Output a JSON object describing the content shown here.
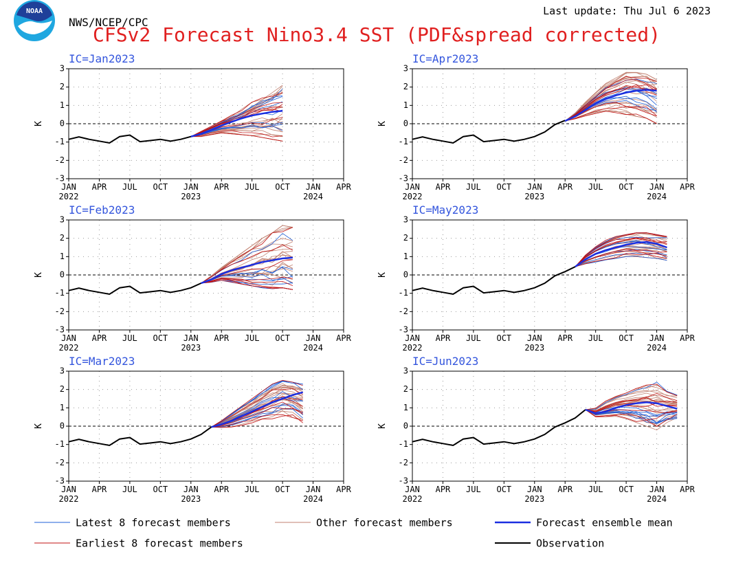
{
  "header": {
    "agency": "NWS/NCEP/CPC",
    "title": "CFSv2 Forecast Nino3.4 SST (PDF&spread corrected)",
    "last_update": "Last update: Thu Jul 6 2023",
    "logo_text": "NOAA"
  },
  "colors": {
    "title": "#e02020",
    "ic_label": "#3355dd",
    "latest": "#1e5fd8",
    "other": "#c08070",
    "mean": "#1a2ee0",
    "earliest": "#c01010",
    "observation": "#000000",
    "logo_blue": "#1fa7e0",
    "logo_dark": "#1f3f99"
  },
  "legend": {
    "latest": "Latest 8 forecast members",
    "other": "Other forecast members",
    "mean": "Forecast ensemble mean",
    "earliest": "Earliest 8 forecast members",
    "observation": "Observation"
  },
  "chart_data": {
    "type": "line",
    "ylabel": "K",
    "ylim": [
      -3,
      3
    ],
    "y_ticks": [
      -3,
      -2,
      -1,
      0,
      1,
      2,
      3
    ],
    "x_range": [
      "2022-01",
      "2024-04"
    ],
    "x_ticks": [
      {
        "month": "JAN",
        "year": "2022"
      },
      {
        "month": "APR",
        "year": ""
      },
      {
        "month": "JUL",
        "year": ""
      },
      {
        "month": "OCT",
        "year": ""
      },
      {
        "month": "JAN",
        "year": "2023"
      },
      {
        "month": "APR",
        "year": ""
      },
      {
        "month": "JUL",
        "year": ""
      },
      {
        "month": "OCT",
        "year": ""
      },
      {
        "month": "JAN",
        "year": "2024"
      },
      {
        "month": "APR",
        "year": ""
      }
    ],
    "grid": true,
    "zero_line": "dashed",
    "observation": {
      "x": [
        "2022-01",
        "2022-02",
        "2022-03",
        "2022-04",
        "2022-05",
        "2022-06",
        "2022-07",
        "2022-08",
        "2022-09",
        "2022-10",
        "2022-11",
        "2022-12",
        "2023-01",
        "2023-02",
        "2023-03",
        "2023-04",
        "2023-05",
        "2023-06"
      ],
      "y": [
        -0.85,
        -0.72,
        -0.85,
        -0.95,
        -1.05,
        -0.7,
        -0.62,
        -0.98,
        -0.92,
        -0.85,
        -0.95,
        -0.85,
        -0.7,
        -0.45,
        -0.05,
        0.18,
        0.45,
        0.9
      ]
    },
    "panels": [
      {
        "ic": "IC=Jan2023",
        "mean": {
          "x": [
            "2023-01",
            "2023-02",
            "2023-03",
            "2023-04",
            "2023-05",
            "2023-06",
            "2023-07",
            "2023-08",
            "2023-09",
            "2023-10"
          ],
          "y": [
            -0.7,
            -0.55,
            -0.35,
            -0.1,
            0.1,
            0.3,
            0.45,
            0.55,
            0.65,
            0.7
          ]
        },
        "envelope": {
          "x": [
            "2023-01",
            "2023-02",
            "2023-03",
            "2023-04",
            "2023-05",
            "2023-06",
            "2023-07",
            "2023-08",
            "2023-09",
            "2023-10"
          ],
          "min": [
            -0.75,
            -0.7,
            -0.6,
            -0.5,
            -0.55,
            -0.6,
            -0.65,
            -0.75,
            -0.85,
            -0.95
          ],
          "max": [
            -0.65,
            -0.4,
            -0.1,
            0.2,
            0.5,
            0.8,
            1.2,
            1.5,
            1.8,
            2.1
          ]
        }
      },
      {
        "ic": "IC=Feb2023",
        "mean": {
          "x": [
            "2023-02",
            "2023-03",
            "2023-04",
            "2023-05",
            "2023-06",
            "2023-07",
            "2023-08",
            "2023-09",
            "2023-10",
            "2023-11"
          ],
          "y": [
            -0.45,
            -0.25,
            0.05,
            0.25,
            0.4,
            0.55,
            0.7,
            0.8,
            0.9,
            0.95
          ]
        },
        "envelope": {
          "x": [
            "2023-02",
            "2023-03",
            "2023-04",
            "2023-05",
            "2023-06",
            "2023-07",
            "2023-08",
            "2023-09",
            "2023-10",
            "2023-11"
          ],
          "min": [
            -0.5,
            -0.4,
            -0.3,
            -0.4,
            -0.5,
            -0.6,
            -0.7,
            -0.75,
            -0.7,
            -0.8
          ],
          "max": [
            -0.4,
            -0.05,
            0.4,
            0.8,
            1.2,
            1.6,
            2.0,
            2.3,
            2.7,
            2.6
          ]
        }
      },
      {
        "ic": "IC=Mar2023",
        "mean": {
          "x": [
            "2023-03",
            "2023-04",
            "2023-05",
            "2023-06",
            "2023-07",
            "2023-08",
            "2023-09",
            "2023-10",
            "2023-11",
            "2023-12"
          ],
          "y": [
            -0.05,
            0.1,
            0.3,
            0.55,
            0.8,
            1.05,
            1.3,
            1.5,
            1.7,
            1.85
          ]
        },
        "envelope": {
          "x": [
            "2023-03",
            "2023-04",
            "2023-05",
            "2023-06",
            "2023-07",
            "2023-08",
            "2023-09",
            "2023-10",
            "2023-11",
            "2023-12"
          ],
          "min": [
            -0.1,
            -0.1,
            -0.1,
            0.0,
            0.1,
            0.2,
            0.3,
            0.5,
            0.4,
            0.0
          ],
          "max": [
            0.0,
            0.3,
            0.7,
            1.1,
            1.5,
            1.9,
            2.3,
            2.5,
            2.4,
            2.3
          ]
        }
      },
      {
        "ic": "IC=Apr2023",
        "mean": {
          "x": [
            "2023-04",
            "2023-05",
            "2023-06",
            "2023-07",
            "2023-08",
            "2023-09",
            "2023-10",
            "2023-11",
            "2023-12",
            "2024-01"
          ],
          "y": [
            0.15,
            0.4,
            0.75,
            1.1,
            1.35,
            1.55,
            1.7,
            1.8,
            1.85,
            1.8
          ]
        },
        "envelope": {
          "x": [
            "2023-04",
            "2023-05",
            "2023-06",
            "2023-07",
            "2023-08",
            "2023-09",
            "2023-10",
            "2023-11",
            "2023-12",
            "2024-01"
          ],
          "min": [
            0.1,
            0.25,
            0.4,
            0.55,
            0.6,
            0.6,
            0.5,
            0.4,
            0.3,
            0.0
          ],
          "max": [
            0.2,
            0.6,
            1.2,
            1.7,
            2.2,
            2.5,
            2.8,
            2.8,
            2.7,
            2.4
          ]
        }
      },
      {
        "ic": "IC=May2023",
        "mean": {
          "x": [
            "2023-05",
            "2023-06",
            "2023-07",
            "2023-08",
            "2023-09",
            "2023-10",
            "2023-11",
            "2023-12",
            "2024-01",
            "2024-02"
          ],
          "y": [
            0.45,
            0.85,
            1.15,
            1.35,
            1.5,
            1.65,
            1.75,
            1.8,
            1.7,
            1.5
          ]
        },
        "envelope": {
          "x": [
            "2023-05",
            "2023-06",
            "2023-07",
            "2023-08",
            "2023-09",
            "2023-10",
            "2023-11",
            "2023-12",
            "2024-01",
            "2024-02"
          ],
          "min": [
            0.4,
            0.6,
            0.7,
            0.8,
            0.9,
            1.0,
            1.0,
            0.95,
            0.9,
            0.8
          ],
          "max": [
            0.5,
            1.1,
            1.55,
            1.9,
            2.1,
            2.2,
            2.3,
            2.3,
            2.2,
            2.1
          ]
        }
      },
      {
        "ic": "IC=Jun2023",
        "mean": {
          "x": [
            "2023-06",
            "2023-07",
            "2023-08",
            "2023-09",
            "2023-10",
            "2023-11",
            "2023-12",
            "2024-01",
            "2024-02",
            "2024-03"
          ],
          "y": [
            0.9,
            0.7,
            0.8,
            1.0,
            1.15,
            1.25,
            1.3,
            1.25,
            1.1,
            0.95
          ]
        },
        "envelope": {
          "x": [
            "2023-06",
            "2023-07",
            "2023-08",
            "2023-09",
            "2023-10",
            "2023-11",
            "2023-12",
            "2024-01",
            "2024-02",
            "2024-03"
          ],
          "min": [
            0.9,
            0.5,
            0.5,
            0.5,
            0.4,
            0.2,
            0.0,
            -0.3,
            0.2,
            0.4
          ],
          "max": [
            0.9,
            1.0,
            1.4,
            1.7,
            1.9,
            2.1,
            2.3,
            2.4,
            1.9,
            1.7
          ]
        }
      }
    ]
  }
}
